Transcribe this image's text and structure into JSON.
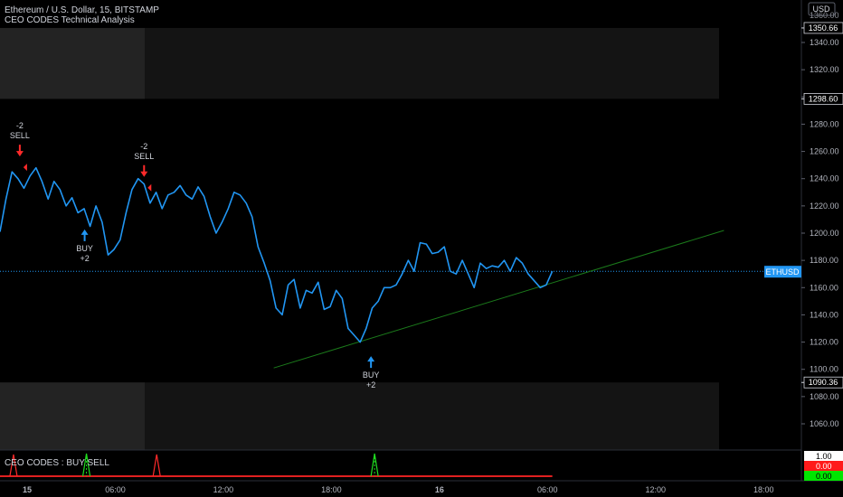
{
  "header": {
    "symbol_title": "Ethereum / U.S. Dollar, 15, BITSTAMP",
    "indicator_title": "CEO CODES Technical Analysis",
    "sub_indicator_title": "CEO CODES : BUY SELL"
  },
  "price_axis": {
    "currency": "USD",
    "ticks": [
      1340,
      1320,
      1300,
      1280,
      1260,
      1240,
      1220,
      1200,
      1180,
      1160,
      1140,
      1120,
      1100,
      1080,
      1060
    ],
    "tick_labels": [
      "1340.00",
      "1320.00",
      "1300.00",
      "1280.00",
      "1260.00",
      "1240.00",
      "1220.00",
      "1200.00",
      "1180.00",
      "1160.00",
      "1140.00",
      "1120.00",
      "1100.00",
      "1080.00",
      "1060.00"
    ],
    "top_partial_label": "1360.00",
    "zone_labels": [
      {
        "value": 1350.66,
        "text": "1350.66"
      },
      {
        "value": 1298.6,
        "text": "1298.60"
      },
      {
        "value": 1090.36,
        "text": "1090.36"
      }
    ],
    "symbol_tag": {
      "text": "ETHUSD",
      "value": 1172,
      "color": "#2196f3"
    }
  },
  "sub_axis": {
    "labels": [
      {
        "text": "1.00",
        "color": "#000000",
        "bg": "#ffffff"
      },
      {
        "text": "0.00",
        "color": "#ffffff",
        "bg": "#ff1a1a"
      },
      {
        "text": "0.00",
        "color": "#000000",
        "bg": "#00e600"
      }
    ]
  },
  "time_axis": {
    "labels": [
      "15",
      "06:00",
      "12:00",
      "18:00",
      "16",
      "06:00",
      "12:00",
      "18:00"
    ],
    "bold": [
      true,
      false,
      false,
      false,
      true,
      false,
      false,
      false
    ]
  },
  "signals": [
    {
      "type": "SELL",
      "count": "-2",
      "x_hour": 1.1,
      "price": 1247
    },
    {
      "type": "BUY",
      "count": "+2",
      "x_hour": 4.7,
      "price": 1212
    },
    {
      "type": "SELL",
      "count": "-2",
      "x_hour": 8.0,
      "price": 1232
    },
    {
      "type": "BUY",
      "count": "+2",
      "x_hour": 20.6,
      "price": 1119
    }
  ],
  "chart_data": {
    "type": "line",
    "series": [
      {
        "color": "#2196f3",
        "x": [
          0.0,
          0.33,
          0.67,
          1.0,
          1.33,
          1.67,
          2.0,
          2.33,
          2.67,
          3.0,
          3.33,
          3.67,
          4.0,
          4.33,
          4.67,
          5.0,
          5.33,
          5.67,
          6.0,
          6.33,
          6.67,
          7.0,
          7.33,
          7.67,
          8.0,
          8.33,
          8.67,
          9.0,
          9.33,
          9.67,
          10.0,
          10.33,
          10.67,
          11.0,
          11.33,
          11.67,
          12.0,
          12.33,
          12.67,
          13.0,
          13.33,
          13.67,
          14.0,
          14.33,
          14.67,
          15.0,
          15.33,
          15.67,
          16.0,
          16.33,
          16.67,
          17.0,
          17.33,
          17.67,
          18.0,
          18.33,
          18.67,
          19.0,
          19.33,
          19.67,
          20.0,
          20.33,
          20.67,
          21.0,
          21.33,
          21.67,
          22.0,
          22.33,
          22.67,
          23.0,
          23.33,
          23.67,
          24.0,
          24.33,
          24.67,
          25.0,
          25.33,
          25.67,
          26.0,
          26.33,
          26.67,
          27.0,
          27.33,
          27.67,
          28.0,
          28.33,
          28.67,
          29.0,
          29.33,
          29.67,
          30.0,
          30.33,
          30.67
        ],
        "values": [
          1201,
          1225,
          1245,
          1240,
          1233,
          1242,
          1248,
          1238,
          1225,
          1238,
          1232,
          1220,
          1226,
          1215,
          1218,
          1205,
          1220,
          1208,
          1184,
          1188,
          1195,
          1215,
          1232,
          1240,
          1236,
          1222,
          1230,
          1218,
          1228,
          1230,
          1235,
          1228,
          1225,
          1234,
          1227,
          1212,
          1200,
          1208,
          1218,
          1230,
          1228,
          1222,
          1212,
          1190,
          1178,
          1165,
          1145,
          1140,
          1162,
          1166,
          1145,
          1158,
          1156,
          1164,
          1144,
          1146,
          1158,
          1152,
          1130,
          1125,
          1120,
          1130,
          1145,
          1150,
          1160,
          1160,
          1162,
          1170,
          1180,
          1172,
          1193,
          1192,
          1185,
          1186,
          1190,
          1172,
          1170,
          1180,
          1170,
          1160,
          1178,
          1174,
          1176,
          1175,
          1180,
          1172,
          1182,
          1178,
          1170,
          1165,
          1160,
          1162,
          1172
        ]
      }
    ],
    "trendline": {
      "x": [
        15.2,
        40.2
      ],
      "values": [
        1101,
        1202
      ],
      "color": "#1b7a1b"
    },
    "reference_line": {
      "value": 1172,
      "color": "#2196f3"
    },
    "zones": [
      {
        "top": 1350.66,
        "bottom": 1298.6
      },
      {
        "top": 1090.36,
        "bottom": 1060
      }
    ],
    "sub_pane": {
      "red_spikes_x": [
        0.75,
        8.7
      ],
      "green_spikes_x": [
        4.8,
        20.8
      ]
    },
    "xlim": [
      0,
      44.5
    ],
    "ylim": [
      1098,
      1363
    ],
    "grid": false
  }
}
